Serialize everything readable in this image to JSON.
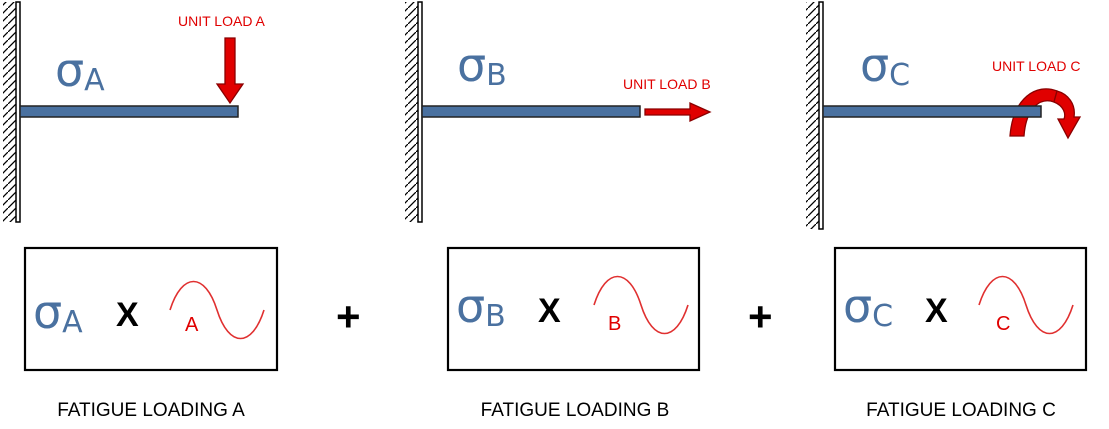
{
  "panels": [
    {
      "stress_symbol": "σ",
      "subscript": "A",
      "load_label": "UNIT LOAD A",
      "load_type": "vertical-force-arrow",
      "formula": {
        "symbol": "σ",
        "subscript": "A",
        "operator": "X",
        "wave_label": "A"
      },
      "caption": "FATIGUE LOADING A"
    },
    {
      "stress_symbol": "σ",
      "subscript": "B",
      "load_label": "UNIT LOAD B",
      "load_type": "horizontal-force-arrow",
      "formula": {
        "symbol": "σ",
        "subscript": "B",
        "operator": "X",
        "wave_label": "B"
      },
      "caption": "FATIGUE LOADING B"
    },
    {
      "stress_symbol": "σ",
      "subscript": "C",
      "load_label": "UNIT LOAD C",
      "load_type": "moment-arrow",
      "formula": {
        "symbol": "σ",
        "subscript": "C",
        "operator": "X",
        "wave_label": "C"
      },
      "caption": "FATIGUE LOADING C"
    }
  ],
  "plus_signs": [
    "+",
    "+"
  ],
  "colors": {
    "sigma": "#4a71a0",
    "beam_fill": "#4a71a0",
    "beam_stroke": "#222222",
    "load": "#e00000",
    "load_stroke": "#8a0000",
    "wave": "#e03030",
    "text": "#000000",
    "wave_label": "#e00000"
  }
}
